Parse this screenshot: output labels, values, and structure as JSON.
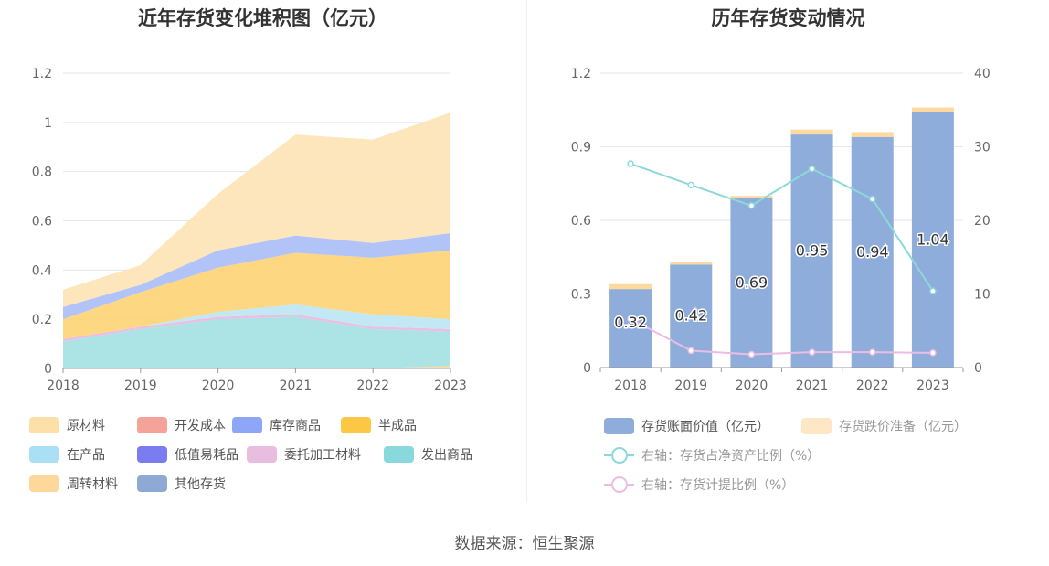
{
  "left": {
    "title": "近年存货变化堆积图（亿元）",
    "legend": [
      {
        "label": "原材料",
        "color": "#fde0a8"
      },
      {
        "label": "开发成本",
        "color": "#f5a398"
      },
      {
        "label": "库存商品",
        "color": "#8ea6f7"
      },
      {
        "label": "半成品",
        "color": "#fdc746"
      },
      {
        "label": "在产品",
        "color": "#a9e0f5"
      },
      {
        "label": "低值易耗品",
        "color": "#7b7cf0"
      },
      {
        "label": "委托加工材料",
        "color": "#e9bde0"
      },
      {
        "label": "发出商品",
        "color": "#88d8dc"
      },
      {
        "label": "周转材料",
        "color": "#fdd89a"
      },
      {
        "label": "其他存货",
        "color": "#8fa9d5"
      }
    ]
  },
  "right": {
    "title": "历年存货变动情况",
    "legend": [
      {
        "label": "存货账面价值（亿元）",
        "color": "#8fadda",
        "kind": "bar"
      },
      {
        "label": "存货跌价准备（亿元）",
        "color": "#fde7c4",
        "kind": "bar"
      },
      {
        "label": "右轴：存货占净资产比例（%）",
        "color": "#8dd8d8",
        "kind": "line"
      },
      {
        "label": "右轴：存货计提比例（%）",
        "color": "#ecbde3",
        "kind": "line"
      }
    ]
  },
  "source": "数据来源：恒生聚源",
  "chart_data": [
    {
      "type": "area",
      "stacked": true,
      "title": "近年存货变化堆积图（亿元）",
      "x": [
        "2018",
        "2019",
        "2020",
        "2021",
        "2022",
        "2023"
      ],
      "ylim": [
        0,
        1.2
      ],
      "yticks": [
        "0",
        "0.2",
        "0.4",
        "0.6",
        "0.8",
        "1",
        "1.2"
      ],
      "series": [
        {
          "name": "周转材料",
          "color": "#fdd89a",
          "values": [
            0,
            0,
            0,
            0,
            0,
            0.01
          ]
        },
        {
          "name": "发出商品",
          "color": "#a8e2e4",
          "values": [
            0.11,
            0.16,
            0.2,
            0.21,
            0.16,
            0.14
          ]
        },
        {
          "name": "委托加工材料",
          "color": "#e9bde0",
          "values": [
            0.01,
            0.01,
            0.01,
            0.01,
            0.01,
            0.01
          ]
        },
        {
          "name": "在产品",
          "color": "#bfe7f6",
          "values": [
            0,
            0,
            0.02,
            0.04,
            0.05,
            0.04
          ]
        },
        {
          "name": "半成品",
          "color": "#fdd57a",
          "values": [
            0.08,
            0.14,
            0.18,
            0.21,
            0.23,
            0.28
          ]
        },
        {
          "name": "库存商品",
          "color": "#aec0f8",
          "values": [
            0.05,
            0.03,
            0.07,
            0.07,
            0.06,
            0.07
          ]
        },
        {
          "name": "原材料",
          "color": "#fde4b8",
          "values": [
            0.07,
            0.08,
            0.23,
            0.41,
            0.42,
            0.49
          ]
        }
      ]
    },
    {
      "type": "bar",
      "title": "历年存货变动情况",
      "categories": [
        "2018",
        "2019",
        "2020",
        "2021",
        "2022",
        "2023"
      ],
      "ylim": [
        0,
        1.2
      ],
      "yticks": [
        "0",
        "0.3",
        "0.6",
        "0.9",
        "1.2"
      ],
      "y2lim": [
        0,
        40
      ],
      "y2ticks": [
        "0",
        "10",
        "20",
        "30",
        "40"
      ],
      "series": [
        {
          "name": "存货账面价值（亿元）",
          "axis": "left",
          "color": "#8fadda",
          "values": [
            0.32,
            0.42,
            0.69,
            0.95,
            0.94,
            1.04
          ],
          "labels": [
            "0.32",
            "0.42",
            "0.69",
            "0.95",
            "0.94",
            "1.04"
          ]
        },
        {
          "name": "存货跌价准备（亿元）",
          "axis": "left",
          "color": "#fdd9a0",
          "values": [
            0.02,
            0.01,
            0.01,
            0.02,
            0.02,
            0.02
          ]
        },
        {
          "name": "右轴：存货占净资产比例（%）",
          "axis": "right",
          "kind": "line",
          "color": "#8dd8d8",
          "values": [
            27.7,
            24.8,
            22.0,
            27.0,
            22.9,
            10.4
          ]
        },
        {
          "name": "右轴：存货计提比例（%）",
          "axis": "right",
          "kind": "line",
          "color": "#ecbde3",
          "values": [
            6.6,
            2.3,
            1.8,
            2.1,
            2.1,
            2.0
          ]
        }
      ]
    }
  ]
}
